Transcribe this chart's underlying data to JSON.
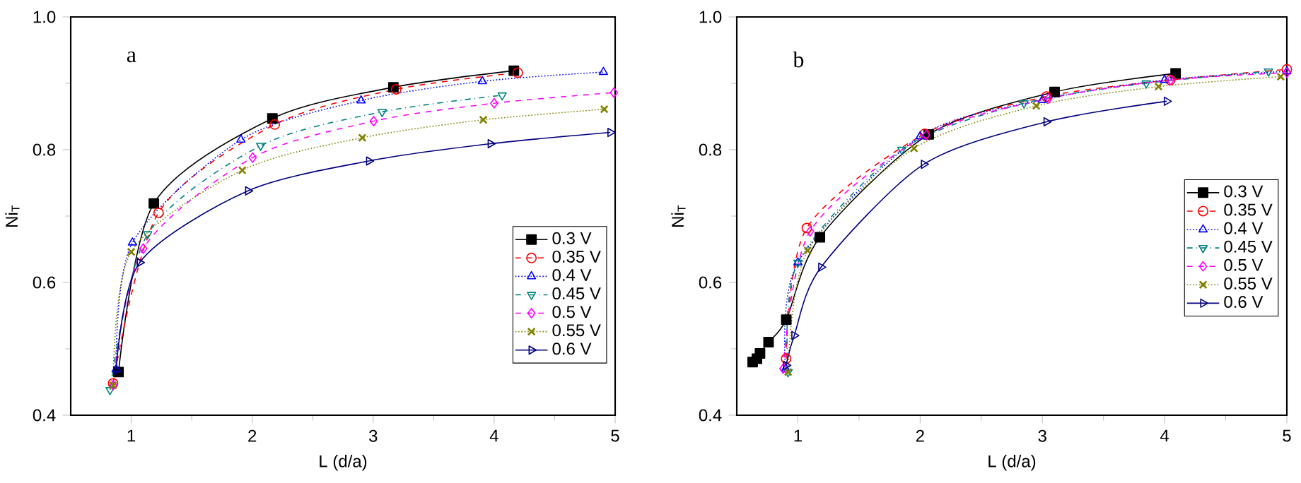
{
  "chart_data": [
    {
      "type": "line",
      "xlabel": "L (d/a)",
      "ylabel": "Ni$_{T}$",
      "annotations": [
        "a"
      ],
      "xlim": [
        0.5,
        5
      ],
      "ylim": [
        0.4,
        1.0
      ],
      "xticks": [
        1,
        2,
        3,
        4,
        5
      ],
      "yticks": [
        0.4,
        0.6,
        0.8,
        {
          "value": 1.0,
          "label": "1.0"
        }
      ],
      "legend": "bottom right",
      "series": [
        {
          "name": "0.3 V",
          "color": "#000000",
          "marker": "square",
          "line_style": "solid",
          "x": [
            0.895,
            1.187,
            2.167,
            3.167,
            4.163
          ],
          "values": [
            0.465,
            0.719,
            0.847,
            0.894,
            0.919
          ]
        },
        {
          "name": "0.35 V",
          "color": "#ff0000",
          "marker": "circle",
          "line_style": "dashed",
          "x": [
            0.85,
            1.226,
            2.187,
            3.19,
            4.195
          ],
          "values": [
            0.448,
            0.705,
            0.838,
            0.891,
            0.916
          ]
        },
        {
          "name": "0.4 V",
          "color": "#0000ff",
          "marker": "triangle",
          "line_style": "dotted",
          "x": [
            0.875,
            1.01,
            1.907,
            2.9,
            3.903,
            4.903
          ],
          "values": [
            0.469,
            0.66,
            0.815,
            0.874,
            0.903,
            0.917
          ]
        },
        {
          "name": "0.45 V",
          "color": "#008080",
          "marker": "triangle-down",
          "line_style": "dashdot",
          "x": [
            0.825,
            1.136,
            2.07,
            3.074,
            4.066
          ],
          "values": [
            0.438,
            0.673,
            0.806,
            0.857,
            0.882
          ]
        },
        {
          "name": "0.5 V",
          "color": "#ff00ff",
          "marker": "diamond",
          "line_style": "dashed",
          "x": [
            0.85,
            1.1,
            2.004,
            3.004,
            4.0,
            4.99
          ],
          "values": [
            0.445,
            0.651,
            0.788,
            0.843,
            0.87,
            0.886
          ]
        },
        {
          "name": "0.55 V",
          "color": "#808000",
          "marker": "cross",
          "line_style": "dotted",
          "x": [
            0.85,
            1.0,
            1.918,
            2.91,
            3.91,
            4.91
          ],
          "values": [
            0.445,
            0.646,
            0.769,
            0.818,
            0.845,
            0.861
          ]
        },
        {
          "name": "0.6 V",
          "color": "#000080",
          "marker": "triangle-right",
          "line_style": "solid",
          "x": [
            0.875,
            1.07,
            1.965,
            2.965,
            3.97,
            4.96
          ],
          "values": [
            0.467,
            0.63,
            0.738,
            0.783,
            0.809,
            0.826
          ]
        }
      ]
    },
    {
      "type": "line",
      "xlabel": "L (d/a)",
      "ylabel": "Ni$_{T}$",
      "annotations": [
        "b"
      ],
      "xlim": [
        0.5,
        5
      ],
      "ylim": [
        0.4,
        1.0
      ],
      "xticks": [
        1,
        2,
        3,
        4,
        5
      ],
      "yticks": [
        0.4,
        0.6,
        0.8,
        {
          "value": 1.0,
          "label": "1.0"
        }
      ],
      "legend": "right",
      "series": [
        {
          "name": "0.3 V",
          "color": "#000000",
          "marker": "square",
          "line_style": "solid",
          "x": [
            0.63,
            0.665,
            0.69,
            0.76,
            0.905,
            1.18,
            2.07,
            3.1,
            4.09
          ],
          "values": [
            0.48,
            0.485,
            0.493,
            0.51,
            0.544,
            0.668,
            0.823,
            0.887,
            0.915
          ]
        },
        {
          "name": "0.35 V",
          "color": "#ff0000",
          "marker": "circle",
          "line_style": "dashed",
          "x": [
            0.904,
            1.073,
            2.038,
            3.033,
            4.047,
            5.0
          ],
          "values": [
            0.485,
            0.682,
            0.824,
            0.88,
            0.905,
            0.921
          ]
        },
        {
          "name": "0.4 V",
          "color": "#0000ff",
          "marker": "triangle",
          "line_style": "dotted",
          "x": [
            0.9,
            1.0,
            2.0,
            3.0,
            4.0,
            5.0
          ],
          "values": [
            0.47,
            0.63,
            0.82,
            0.875,
            0.905,
            0.918
          ]
        },
        {
          "name": "0.45 V",
          "color": "#008080",
          "marker": "triangle-down",
          "line_style": "dashdot",
          "x": [
            0.92,
            1.0,
            1.85,
            2.85,
            3.85,
            4.85
          ],
          "values": [
            0.465,
            0.63,
            0.8,
            0.87,
            0.9,
            0.918
          ]
        },
        {
          "name": "0.5 V",
          "color": "#ff00ff",
          "marker": "diamond",
          "line_style": "dashed",
          "x": [
            0.88,
            1.1,
            2.05,
            3.05,
            4.05,
            5.0
          ],
          "values": [
            0.47,
            0.677,
            0.822,
            0.877,
            0.905,
            0.916
          ]
        },
        {
          "name": "0.55 V",
          "color": "#808000",
          "marker": "cross",
          "line_style": "dotted",
          "x": [
            0.92,
            1.08,
            1.95,
            2.95,
            3.95,
            4.95
          ],
          "values": [
            0.465,
            0.648,
            0.802,
            0.866,
            0.895,
            0.91
          ]
        },
        {
          "name": "0.6 V",
          "color": "#000080",
          "marker": "triangle-right",
          "line_style": "solid",
          "x": [
            0.904,
            0.97,
            1.19,
            2.03,
            3.033,
            4.017
          ],
          "values": [
            0.475,
            0.52,
            0.623,
            0.778,
            0.842,
            0.873
          ]
        }
      ]
    }
  ]
}
